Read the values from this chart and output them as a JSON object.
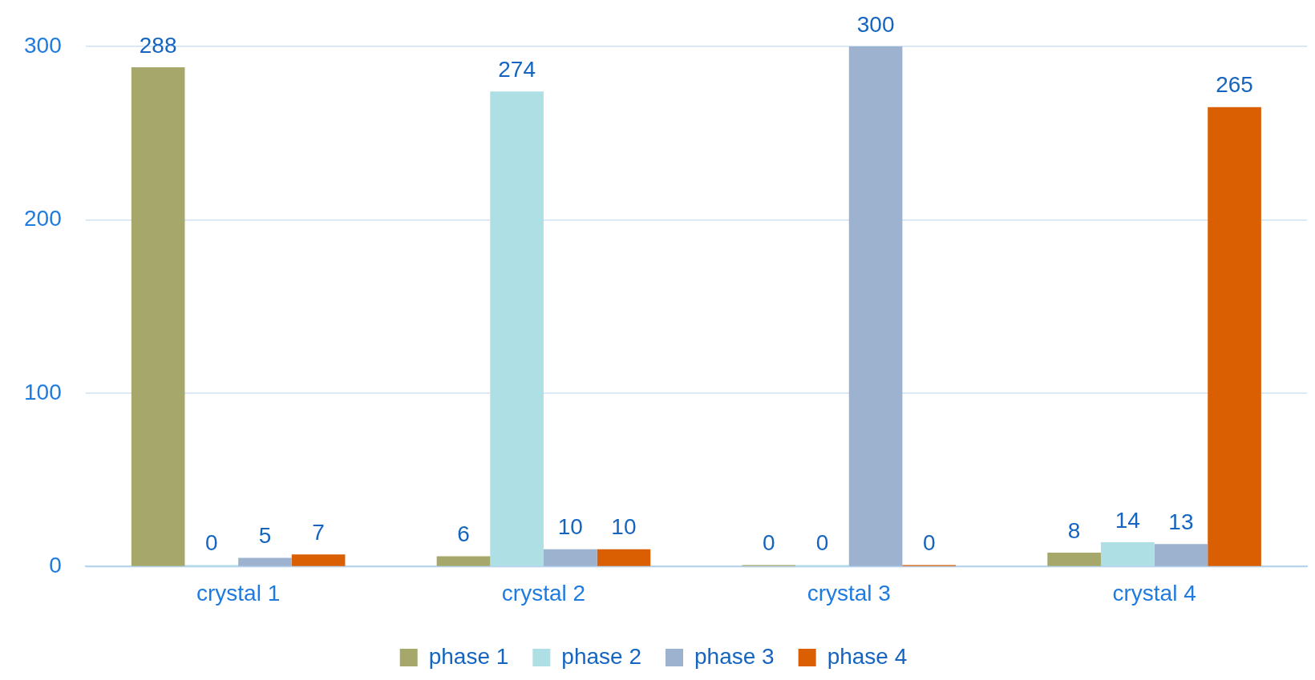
{
  "chart_data": {
    "type": "bar",
    "categories": [
      "crystal 1",
      "crystal 2",
      "crystal 3",
      "crystal 4"
    ],
    "series": [
      {
        "name": "phase 1",
        "color": "#a5a86a",
        "values": [
          288,
          6,
          0,
          8
        ]
      },
      {
        "name": "phase 2",
        "color": "#addfe5",
        "values": [
          0,
          274,
          0,
          14
        ]
      },
      {
        "name": "phase 3",
        "color": "#9db2cf",
        "values": [
          5,
          10,
          300,
          13
        ]
      },
      {
        "name": "phase 4",
        "color": "#d95f02",
        "values": [
          7,
          10,
          0,
          265
        ]
      }
    ],
    "ylim": [
      0,
      300
    ],
    "yticks": [
      0,
      100,
      200,
      300
    ],
    "grid": "y",
    "legend": "bottom",
    "data_labels": true
  }
}
